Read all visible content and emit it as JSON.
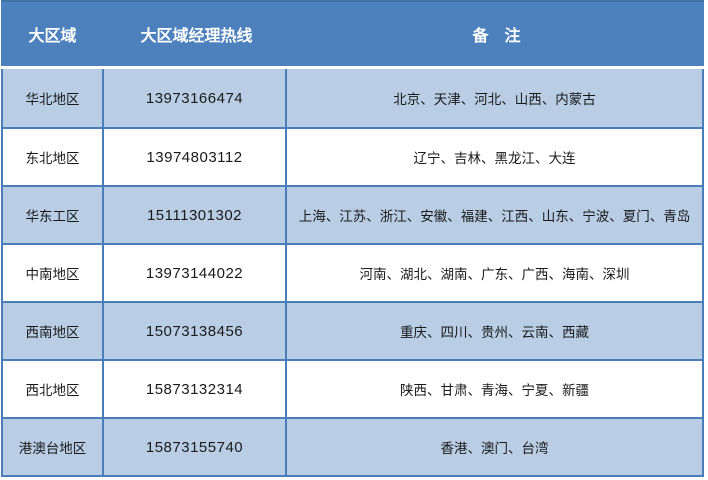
{
  "colors": {
    "page-bg": "#FFFFFF",
    "header-bg": "#4D81BD",
    "header-top-edge": "#4273A6",
    "header-text": "#FFFFFF",
    "row-alt-bg": "#B9CDE4",
    "row-bg": "#FFFFFF",
    "grid-border": "#4A7EBB",
    "body-text": "#1A1A1A"
  },
  "table": {
    "columns": [
      {
        "label": "大区域"
      },
      {
        "label": "大区域经理热线"
      },
      {
        "label": "备　注"
      }
    ],
    "rows": [
      {
        "region": "华北地区",
        "hotline": "13973166474",
        "remark": "北京、天津、河北、山西、内蒙古"
      },
      {
        "region": "东北地区",
        "hotline": "13974803112",
        "remark": "辽宁、吉林、黑龙江、大连"
      },
      {
        "region": "华东工区",
        "hotline": "15111301302",
        "remark": "上海、江苏、浙江、安徽、福建、江西、山东、宁波、夏门、青岛"
      },
      {
        "region": "中南地区",
        "hotline": "13973144022",
        "remark": "河南、湖北、湖南、广东、广西、海南、深圳"
      },
      {
        "region": "西南地区",
        "hotline": "15073138456",
        "remark": "重庆、四川、贵州、云南、西藏"
      },
      {
        "region": "西北地区",
        "hotline": "15873132314",
        "remark": "陕西、甘肃、青海、宁夏、新疆"
      },
      {
        "region": "港澳台地区",
        "hotline": "15873155740",
        "remark": "香港、澳门、台湾"
      }
    ]
  }
}
